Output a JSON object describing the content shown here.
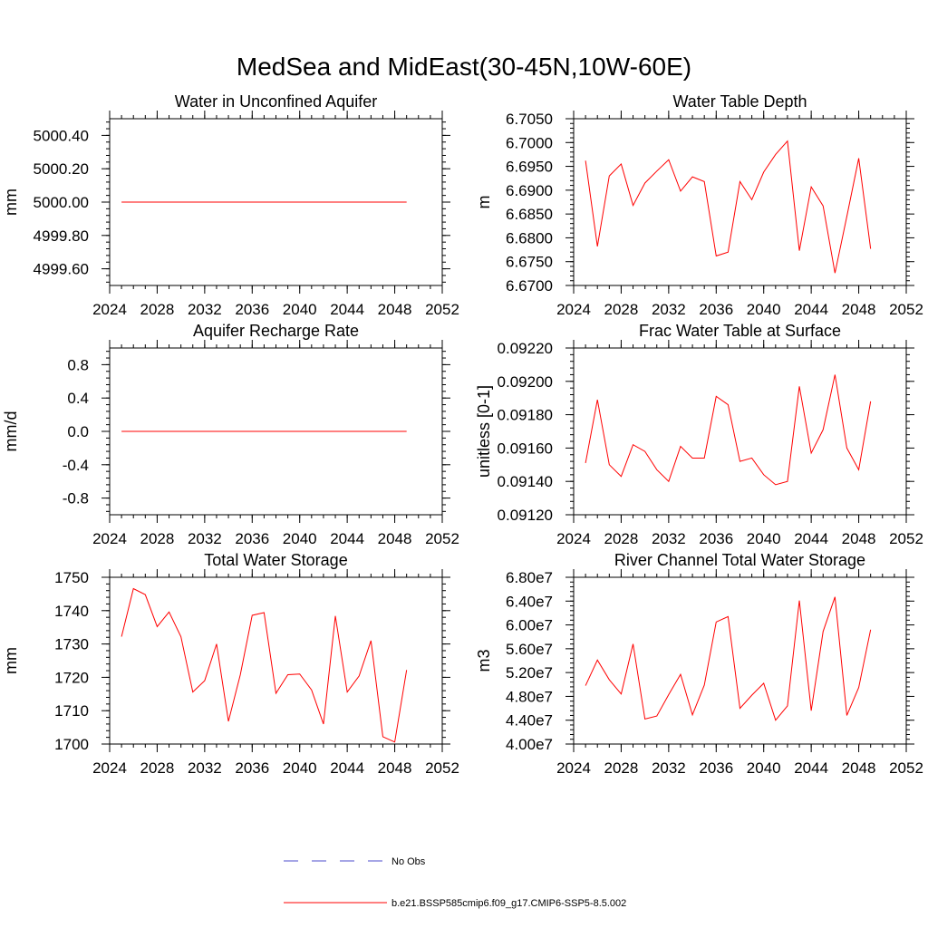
{
  "figure": {
    "title": "MedSea and MidEast(30-45N,10W-60E)"
  },
  "colors": {
    "model_line": "#ff0000",
    "obs_line": "#4d4dcc",
    "axis": "#000000",
    "background": "#ffffff"
  },
  "legend": {
    "items": [
      {
        "label": "No Obs",
        "style": "dashed",
        "color": "#4d4dcc"
      },
      {
        "label": "b.e21.BSSP585cmip6.f09_g17.CMIP6-SSP5-8.5.002",
        "style": "solid",
        "color": "#ff0000"
      }
    ]
  },
  "chart_data": [
    {
      "type": "line",
      "title": "Water in Unconfined Aquifer",
      "xlabel": "",
      "ylabel": "mm",
      "xlim": [
        2024,
        2052
      ],
      "ylim": [
        4999.5,
        5000.5
      ],
      "xticks": [
        2024,
        2028,
        2032,
        2036,
        2040,
        2044,
        2048,
        2052
      ],
      "xtick_labels": [
        "2024",
        "2028",
        "2032",
        "2036",
        "2040",
        "2044",
        "2048",
        "2052"
      ],
      "yticks": [
        4999.6,
        4999.8,
        5000.0,
        5000.2,
        5000.4
      ],
      "ytick_labels": [
        "4999.60",
        "4999.80",
        "5000.00",
        "5000.20",
        "5000.40"
      ],
      "x": [
        2025,
        2026,
        2027,
        2028,
        2029,
        2030,
        2031,
        2032,
        2033,
        2034,
        2035,
        2036,
        2037,
        2038,
        2039,
        2040,
        2041,
        2042,
        2043,
        2044,
        2045,
        2046,
        2047,
        2048,
        2049
      ],
      "series": [
        {
          "values": [
            5000.0,
            5000.0,
            5000.0,
            5000.0,
            5000.0,
            5000.0,
            5000.0,
            5000.0,
            5000.0,
            5000.0,
            5000.0,
            5000.0,
            5000.0,
            5000.0,
            5000.0,
            5000.0,
            5000.0,
            5000.0,
            5000.0,
            5000.0,
            5000.0,
            5000.0,
            5000.0,
            5000.0,
            5000.0
          ]
        }
      ]
    },
    {
      "type": "line",
      "title": "Water Table Depth",
      "xlabel": "",
      "ylabel": "m",
      "xlim": [
        2024,
        2052
      ],
      "ylim": [
        6.67,
        6.705
      ],
      "xticks": [
        2024,
        2028,
        2032,
        2036,
        2040,
        2044,
        2048,
        2052
      ],
      "xtick_labels": [
        "2024",
        "2028",
        "2032",
        "2036",
        "2040",
        "2044",
        "2048",
        "2052"
      ],
      "yticks": [
        6.67,
        6.675,
        6.68,
        6.685,
        6.69,
        6.695,
        6.7,
        6.705
      ],
      "ytick_labels": [
        "6.6700",
        "6.6750",
        "6.6800",
        "6.6850",
        "6.6900",
        "6.6950",
        "6.7000",
        "6.7050"
      ],
      "x": [
        2025,
        2026,
        2027,
        2028,
        2029,
        2030,
        2031,
        2032,
        2033,
        2034,
        2035,
        2036,
        2037,
        2038,
        2039,
        2040,
        2041,
        2042,
        2043,
        2044,
        2045,
        2046,
        2047,
        2048,
        2049
      ],
      "series": [
        {
          "values": [
            6.6962,
            6.6782,
            6.693,
            6.6955,
            6.6868,
            6.6915,
            6.694,
            6.6964,
            6.6898,
            6.6928,
            6.6918,
            6.6762,
            6.677,
            6.6918,
            6.688,
            6.6938,
            6.6975,
            6.7003,
            6.6773,
            6.6907,
            6.6867,
            6.6726,
            6.6845,
            6.6967,
            6.6777
          ]
        }
      ]
    },
    {
      "type": "line",
      "title": "Aquifer Recharge Rate",
      "xlabel": "",
      "ylabel": "mm/d",
      "xlim": [
        2024,
        2052
      ],
      "ylim": [
        -1.0,
        1.0
      ],
      "xticks": [
        2024,
        2028,
        2032,
        2036,
        2040,
        2044,
        2048,
        2052
      ],
      "xtick_labels": [
        "2024",
        "2028",
        "2032",
        "2036",
        "2040",
        "2044",
        "2048",
        "2052"
      ],
      "yticks": [
        -0.8,
        -0.4,
        0.0,
        0.4,
        0.8
      ],
      "ytick_labels": [
        "-0.8",
        "-0.4",
        "0.0",
        "0.4",
        "0.8"
      ],
      "x": [
        2025,
        2026,
        2027,
        2028,
        2029,
        2030,
        2031,
        2032,
        2033,
        2034,
        2035,
        2036,
        2037,
        2038,
        2039,
        2040,
        2041,
        2042,
        2043,
        2044,
        2045,
        2046,
        2047,
        2048,
        2049
      ],
      "series": [
        {
          "values": [
            0,
            0,
            0,
            0,
            0,
            0,
            0,
            0,
            0,
            0,
            0,
            0,
            0,
            0,
            0,
            0,
            0,
            0,
            0,
            0,
            0,
            0,
            0,
            0,
            0
          ]
        }
      ]
    },
    {
      "type": "line",
      "title": "Frac Water Table at Surface",
      "xlabel": "",
      "ylabel": "unitless [0-1]",
      "xlim": [
        2024,
        2052
      ],
      "ylim": [
        0.0912,
        0.0922
      ],
      "xticks": [
        2024,
        2028,
        2032,
        2036,
        2040,
        2044,
        2048,
        2052
      ],
      "xtick_labels": [
        "2024",
        "2028",
        "2032",
        "2036",
        "2040",
        "2044",
        "2048",
        "2052"
      ],
      "yticks": [
        0.0912,
        0.0914,
        0.0916,
        0.0918,
        0.092,
        0.0922
      ],
      "ytick_labels": [
        "0.09120",
        "0.09140",
        "0.09160",
        "0.09180",
        "0.09200",
        "0.09220"
      ],
      "x": [
        2025,
        2026,
        2027,
        2028,
        2029,
        2030,
        2031,
        2032,
        2033,
        2034,
        2035,
        2036,
        2037,
        2038,
        2039,
        2040,
        2041,
        2042,
        2043,
        2044,
        2045,
        2046,
        2047,
        2048,
        2049
      ],
      "series": [
        {
          "values": [
            0.09151,
            0.09189,
            0.0915,
            0.09143,
            0.09162,
            0.09158,
            0.09147,
            0.0914,
            0.09161,
            0.09154,
            0.09154,
            0.09191,
            0.09186,
            0.09152,
            0.09154,
            0.09144,
            0.09138,
            0.0914,
            0.09197,
            0.09157,
            0.09171,
            0.09204,
            0.0916,
            0.09147,
            0.09188
          ]
        }
      ]
    },
    {
      "type": "line",
      "title": "Total Water Storage",
      "xlabel": "",
      "ylabel": "mm",
      "xlim": [
        2024,
        2052
      ],
      "ylim": [
        1700,
        1750
      ],
      "xticks": [
        2024,
        2028,
        2032,
        2036,
        2040,
        2044,
        2048,
        2052
      ],
      "xtick_labels": [
        "2024",
        "2028",
        "2032",
        "2036",
        "2040",
        "2044",
        "2048",
        "2052"
      ],
      "yticks": [
        1700,
        1710,
        1720,
        1730,
        1740,
        1750
      ],
      "ytick_labels": [
        "1700",
        "1710",
        "1720",
        "1730",
        "1740",
        "1750"
      ],
      "x": [
        2025,
        2026,
        2027,
        2028,
        2029,
        2030,
        2031,
        2032,
        2033,
        2034,
        2035,
        2036,
        2037,
        2038,
        2039,
        2040,
        2041,
        2042,
        2043,
        2044,
        2045,
        2046,
        2047,
        2048,
        2049
      ],
      "series": [
        {
          "values": [
            1732.2,
            1746.6,
            1744.8,
            1735.2,
            1739.6,
            1732.2,
            1715.6,
            1719.0,
            1730.0,
            1706.8,
            1720.8,
            1738.6,
            1739.4,
            1715.2,
            1720.8,
            1721.0,
            1716.2,
            1706.0,
            1738.4,
            1715.6,
            1720.4,
            1731.0,
            1702.2,
            1700.6,
            1722.2
          ]
        }
      ]
    },
    {
      "type": "line",
      "title": "River Channel Total Water Storage",
      "xlabel": "",
      "ylabel": "m3",
      "xlim": [
        2024,
        2052
      ],
      "ylim": [
        40000000,
        68000000
      ],
      "xticks": [
        2024,
        2028,
        2032,
        2036,
        2040,
        2044,
        2048,
        2052
      ],
      "xtick_labels": [
        "2024",
        "2028",
        "2032",
        "2036",
        "2040",
        "2044",
        "2048",
        "2052"
      ],
      "yticks": [
        40000000,
        44000000,
        48000000,
        52000000,
        56000000,
        60000000,
        64000000,
        68000000
      ],
      "ytick_labels": [
        "4.00e7",
        "4.40e7",
        "4.80e7",
        "5.20e7",
        "5.60e7",
        "6.00e7",
        "6.40e7",
        "6.80e7"
      ],
      "x": [
        2025,
        2026,
        2027,
        2028,
        2029,
        2030,
        2031,
        2032,
        2033,
        2034,
        2035,
        2036,
        2037,
        2038,
        2039,
        2040,
        2041,
        2042,
        2043,
        2044,
        2045,
        2046,
        2047,
        2048,
        2049
      ],
      "series": [
        {
          "values": [
            49800000,
            54100000,
            50800000,
            48400000,
            56800000,
            44200000,
            44700000,
            48300000,
            51700000,
            44900000,
            49900000,
            60500000,
            61400000,
            46000000,
            48200000,
            50200000,
            44000000,
            46400000,
            64100000,
            45600000,
            58900000,
            64700000,
            44800000,
            49500000,
            59200000
          ]
        }
      ]
    }
  ]
}
